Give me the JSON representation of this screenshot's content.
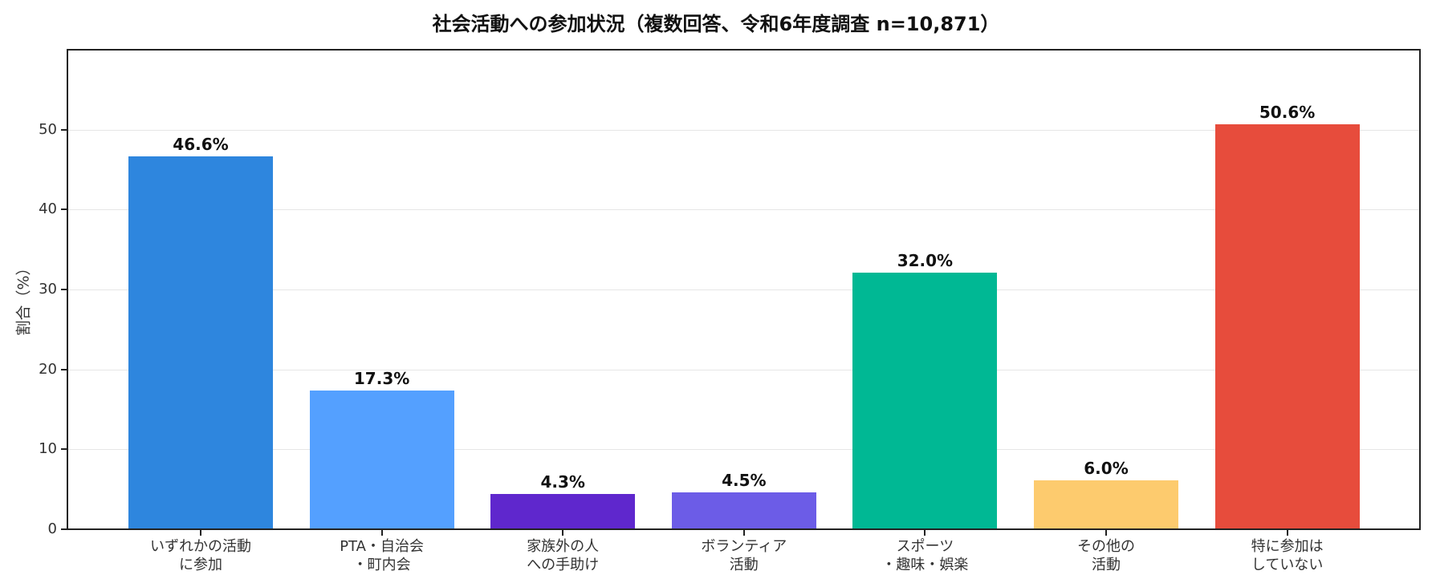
{
  "chart_data": {
    "type": "bar",
    "title": "社会活動への参加状況（複数回答、令和6年度調査 n=10,871）",
    "xlabel": "",
    "ylabel": "割合（%）",
    "ylim": [
      0,
      60
    ],
    "yticks": [
      "0",
      "10",
      "20",
      "30",
      "40",
      "50"
    ],
    "grid": "y",
    "categories": [
      "いずれかの活動\nに参加",
      "PTA・自治会\n・町内会",
      "家族外の人\nへの手助け",
      "ボランティア\n活動",
      "スポーツ\n・趣味・娯楽",
      "その他の\n活動",
      "特に参加は\nしていない"
    ],
    "values": [
      46.6,
      17.3,
      4.3,
      4.5,
      32.0,
      6.0,
      50.6
    ],
    "value_labels": [
      "46.6%",
      "17.3%",
      "4.3%",
      "4.5%",
      "32.0%",
      "6.0%",
      "50.6%"
    ],
    "colors": [
      "#2e86de",
      "#54a0ff",
      "#5f27cd",
      "#6c5ce7",
      "#00b894",
      "#fdcb6e",
      "#e74c3c"
    ]
  },
  "labels": {
    "cat0_l1": "いずれかの活動",
    "cat0_l2": "に参加",
    "cat1_l1": "PTA・自治会",
    "cat1_l2": "・町内会",
    "cat2_l1": "家族外の人",
    "cat2_l2": "への手助け",
    "cat3_l1": "ボランティア",
    "cat3_l2": "活動",
    "cat4_l1": "スポーツ",
    "cat4_l2": "・趣味・娯楽",
    "cat5_l1": "その他の",
    "cat5_l2": "活動",
    "cat6_l1": "特に参加は",
    "cat6_l2": "していない"
  }
}
